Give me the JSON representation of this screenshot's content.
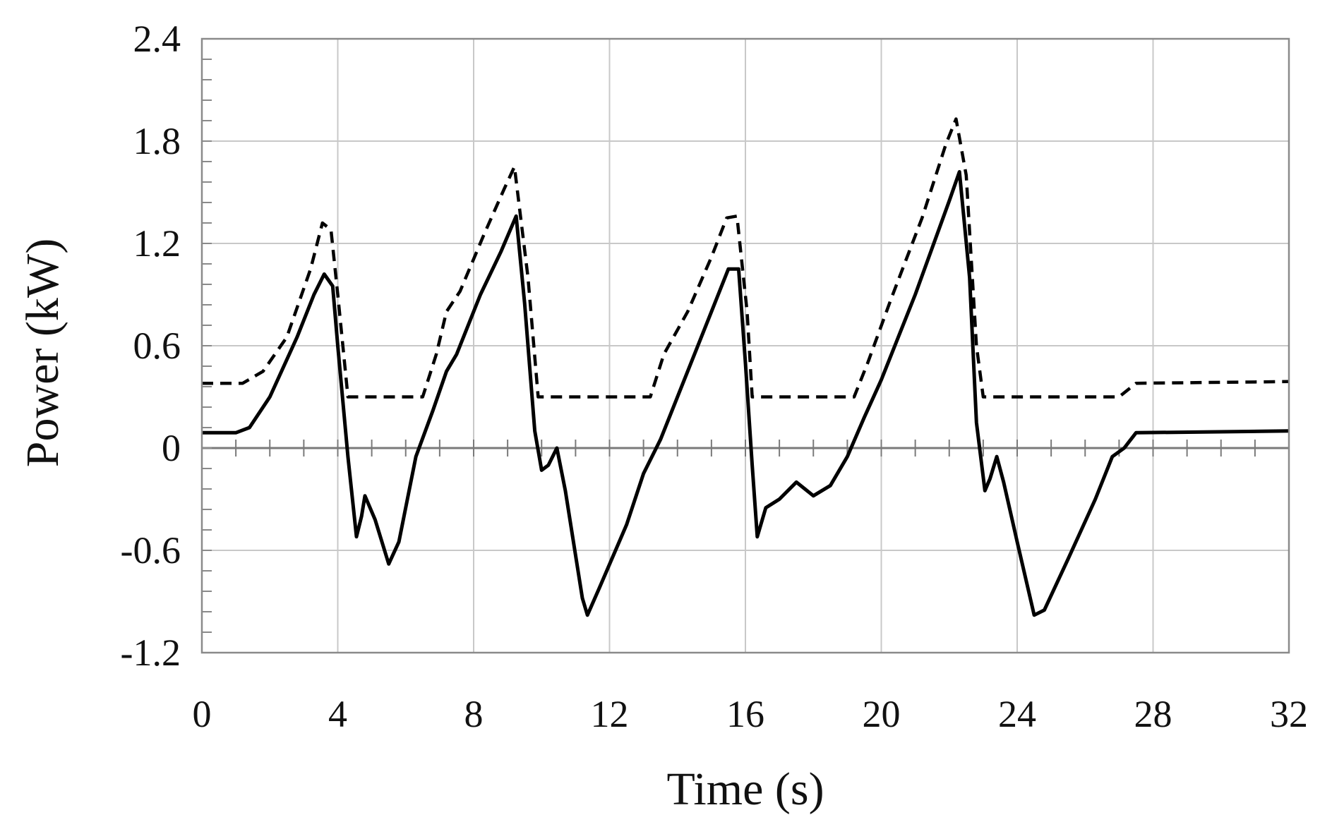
{
  "chart_data": {
    "type": "line",
    "xlabel": "Time (s)",
    "ylabel": "Power (kW)",
    "xlim": [
      0,
      32
    ],
    "ylim": [
      -1.2,
      2.4
    ],
    "x_ticks": [
      "0",
      "4",
      "8",
      "12",
      "16",
      "20",
      "24",
      "28",
      "32"
    ],
    "y_ticks": [
      "2.4",
      "1.8",
      "1.2",
      "0.6",
      "0",
      "-0.6",
      "-1.2"
    ],
    "grid": true,
    "legend": "none",
    "series": [
      {
        "style": "solid",
        "color": "#000000",
        "points": [
          [
            0,
            0.09
          ],
          [
            1.0,
            0.09
          ],
          [
            1.4,
            0.12
          ],
          [
            2.0,
            0.3
          ],
          [
            2.8,
            0.65
          ],
          [
            3.3,
            0.9
          ],
          [
            3.6,
            1.02
          ],
          [
            3.85,
            0.95
          ],
          [
            4.0,
            0.6
          ],
          [
            4.3,
            -0.05
          ],
          [
            4.55,
            -0.52
          ],
          [
            4.7,
            -0.4
          ],
          [
            4.8,
            -0.28
          ],
          [
            5.1,
            -0.42
          ],
          [
            5.5,
            -0.68
          ],
          [
            5.8,
            -0.55
          ],
          [
            6.3,
            -0.05
          ],
          [
            6.8,
            0.22
          ],
          [
            7.2,
            0.45
          ],
          [
            7.5,
            0.55
          ],
          [
            8.2,
            0.9
          ],
          [
            8.8,
            1.15
          ],
          [
            9.25,
            1.36
          ],
          [
            9.5,
            0.85
          ],
          [
            9.8,
            0.1
          ],
          [
            10.0,
            -0.13
          ],
          [
            10.2,
            -0.1
          ],
          [
            10.45,
            0.0
          ],
          [
            10.7,
            -0.25
          ],
          [
            11.2,
            -0.88
          ],
          [
            11.35,
            -0.98
          ],
          [
            11.7,
            -0.82
          ],
          [
            12.5,
            -0.45
          ],
          [
            13.0,
            -0.15
          ],
          [
            13.5,
            0.05
          ],
          [
            14.2,
            0.4
          ],
          [
            15.0,
            0.8
          ],
          [
            15.5,
            1.05
          ],
          [
            15.8,
            1.05
          ],
          [
            16.0,
            0.5
          ],
          [
            16.2,
            -0.1
          ],
          [
            16.35,
            -0.52
          ],
          [
            16.6,
            -0.35
          ],
          [
            17.0,
            -0.3
          ],
          [
            17.5,
            -0.2
          ],
          [
            18.0,
            -0.28
          ],
          [
            18.5,
            -0.22
          ],
          [
            19.0,
            -0.05
          ],
          [
            19.5,
            0.18
          ],
          [
            20.0,
            0.4
          ],
          [
            21.0,
            0.9
          ],
          [
            22.0,
            1.45
          ],
          [
            22.3,
            1.62
          ],
          [
            22.6,
            1.0
          ],
          [
            22.8,
            0.15
          ],
          [
            23.05,
            -0.25
          ],
          [
            23.2,
            -0.18
          ],
          [
            23.4,
            -0.05
          ],
          [
            23.6,
            -0.2
          ],
          [
            24.0,
            -0.55
          ],
          [
            24.5,
            -0.98
          ],
          [
            24.8,
            -0.95
          ],
          [
            25.5,
            -0.65
          ],
          [
            26.3,
            -0.3
          ],
          [
            26.8,
            -0.05
          ],
          [
            27.15,
            0.0
          ],
          [
            27.5,
            0.09
          ],
          [
            32,
            0.1
          ]
        ]
      },
      {
        "style": "dashed",
        "color": "#000000",
        "points": [
          [
            0,
            0.38
          ],
          [
            1.2,
            0.38
          ],
          [
            1.8,
            0.45
          ],
          [
            2.5,
            0.65
          ],
          [
            3.2,
            1.05
          ],
          [
            3.55,
            1.32
          ],
          [
            3.8,
            1.28
          ],
          [
            4.0,
            0.9
          ],
          [
            4.3,
            0.3
          ],
          [
            6.5,
            0.3
          ],
          [
            6.9,
            0.55
          ],
          [
            7.2,
            0.8
          ],
          [
            7.6,
            0.92
          ],
          [
            8.3,
            1.25
          ],
          [
            8.9,
            1.52
          ],
          [
            9.2,
            1.65
          ],
          [
            9.6,
            1.0
          ],
          [
            9.9,
            0.3
          ],
          [
            13.2,
            0.3
          ],
          [
            13.6,
            0.55
          ],
          [
            14.3,
            0.8
          ],
          [
            15.0,
            1.12
          ],
          [
            15.45,
            1.35
          ],
          [
            15.75,
            1.36
          ],
          [
            16.05,
            0.8
          ],
          [
            16.2,
            0.3
          ],
          [
            19.2,
            0.3
          ],
          [
            19.6,
            0.5
          ],
          [
            20.3,
            0.88
          ],
          [
            21.2,
            1.35
          ],
          [
            21.9,
            1.78
          ],
          [
            22.2,
            1.93
          ],
          [
            22.5,
            1.6
          ],
          [
            22.8,
            0.6
          ],
          [
            23.0,
            0.3
          ],
          [
            27.0,
            0.3
          ],
          [
            27.5,
            0.38
          ],
          [
            32,
            0.39
          ]
        ]
      }
    ]
  }
}
